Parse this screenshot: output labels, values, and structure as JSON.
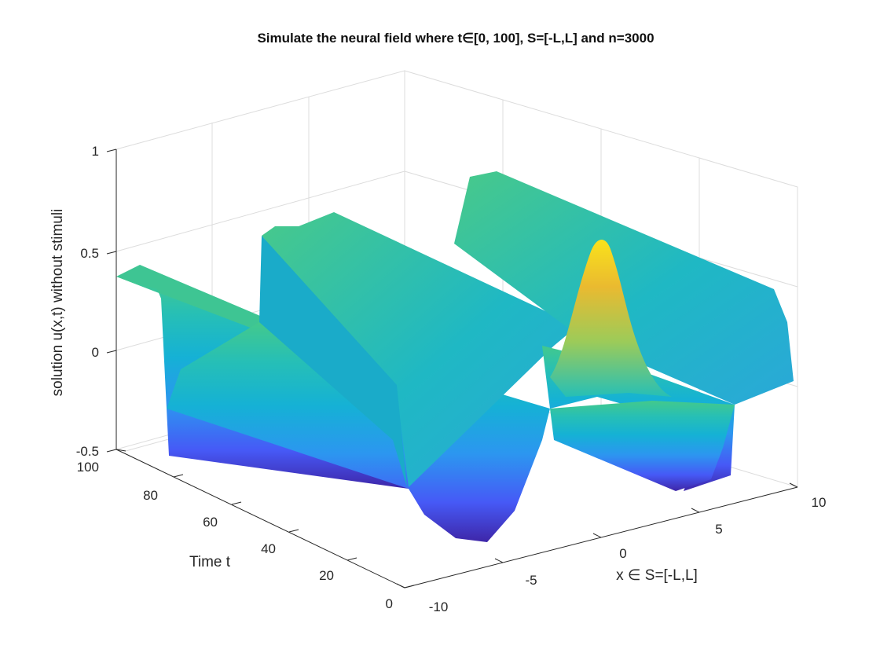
{
  "chart_data": {
    "type": "surface",
    "title": "Simulate the neural field where t∈[0, 100], S=[-L,L] and n=3000",
    "xlabel": "x ∈ S=[-L,L]",
    "ylabel": "Time t",
    "zlabel": "solution u(x,t) without stimuli",
    "xlim": [
      -10,
      10
    ],
    "ylim": [
      0,
      100
    ],
    "zlim": [
      -0.5,
      1
    ],
    "xticks": [
      "-10",
      "-5",
      "0",
      "5",
      "10"
    ],
    "yticks": [
      "0",
      "20",
      "40",
      "60",
      "80",
      "100"
    ],
    "zticks": [
      "-0.5",
      "0",
      "0.5",
      "1"
    ],
    "grid": "on",
    "colormap": [
      "#3e26a8",
      "#4659f6",
      "#2c96f0",
      "#15b1d5",
      "#26bfb6",
      "#43c98c",
      "#9ccb59",
      "#eaba30",
      "#fcd32b",
      "#f9fb15"
    ],
    "profile_x": [
      -10,
      -9.5,
      -9,
      -8.5,
      -8,
      -7.5,
      -7,
      -6.5,
      -6,
      -5.5,
      -5,
      -4.5,
      -4,
      -3.5,
      -3,
      -2.5,
      -2,
      -1.5,
      -1,
      -0.5,
      0,
      0.5,
      1,
      1.5,
      2,
      2.5,
      3,
      3.5,
      4,
      4.5,
      5,
      5.5,
      6,
      6.5,
      7,
      7.5,
      8,
      8.5,
      9,
      9.5,
      10
    ],
    "profile_u_late": [
      0.39,
      0.42,
      0.4,
      0.36,
      0.33,
      0.3,
      0.27,
      0.24,
      0.22,
      0.18,
      0.1,
      -0.1,
      -0.3,
      -0.42,
      -0.45,
      -0.4,
      -0.25,
      -0.05,
      0.18,
      0.42,
      0.56,
      0.58,
      0.56,
      0.53,
      0.5,
      0.47,
      0.44,
      0.42,
      0.45,
      0.52,
      0.58,
      0.6,
      0.58,
      0.55,
      0.52,
      0.49,
      0.46,
      0.43,
      0.4,
      0.36,
      0.34
    ],
    "profile_u_initial": [
      0.39,
      0.42,
      0.3,
      -0.1,
      -0.4,
      -0.47,
      -0.47,
      -0.47,
      -0.47,
      -0.46,
      -0.4,
      -0.15,
      0.2,
      0.45,
      0.55,
      0.58,
      0.55,
      0.4,
      0.1,
      -0.2,
      -0.4,
      -0.46,
      -0.4,
      -0.1,
      0.25,
      0.5,
      0.56,
      0.55,
      0.5,
      0.3,
      0.5,
      0.8,
      0.93,
      0.75,
      0.35,
      0.05,
      -0.05,
      0.0,
      0.05,
      0.0,
      -0.1
    ],
    "peak": {
      "x": 6,
      "t": 0,
      "u": 0.93
    }
  }
}
